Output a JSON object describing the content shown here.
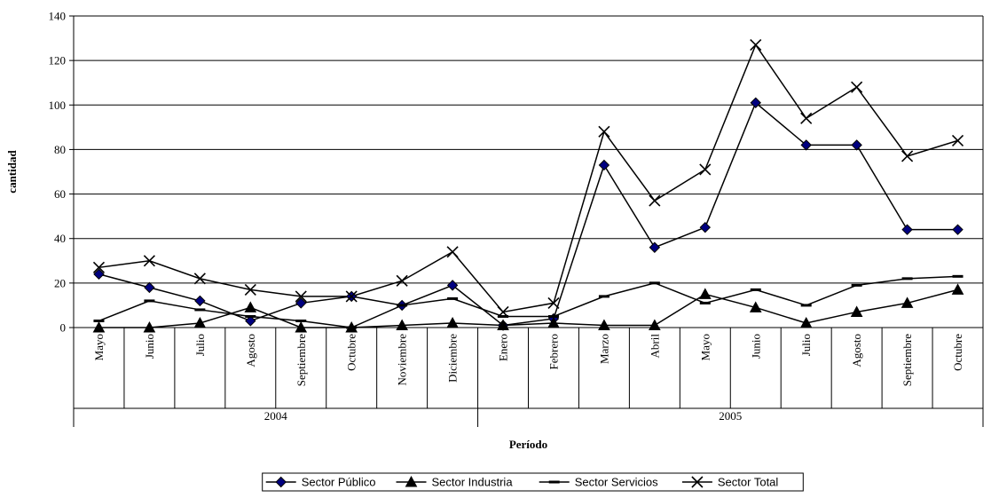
{
  "chart_data": {
    "type": "line",
    "categories": [
      "Mayo",
      "Junio",
      "Julio",
      "Agosto",
      "Septiembre",
      "Octubre",
      "Noviembre",
      "Diciembre",
      "Enero",
      "Febrero",
      "Marzo",
      "Abril",
      "Mayo",
      "Junio",
      "Julio",
      "Agosto",
      "Septiembre",
      "Octubre"
    ],
    "groups": [
      {
        "label": "2004",
        "start": 0,
        "end": 7
      },
      {
        "label": "2005",
        "start": 8,
        "end": 17
      }
    ],
    "series": [
      {
        "name": "Sector Público",
        "marker": "diamond",
        "color": "#000080",
        "values": [
          24,
          18,
          12,
          3,
          11,
          14,
          10,
          19,
          1,
          4,
          73,
          36,
          45,
          101,
          82,
          82,
          44,
          44
        ]
      },
      {
        "name": "Sector Industria",
        "marker": "triangle",
        "color": "#000000",
        "values": [
          0,
          0,
          2,
          9,
          0,
          0,
          1,
          2,
          1,
          2,
          1,
          1,
          15,
          9,
          2,
          7,
          11,
          17
        ]
      },
      {
        "name": "Sector Servicios",
        "marker": "dash",
        "color": "#000000",
        "values": [
          3,
          12,
          8,
          5,
          3,
          0,
          10,
          13,
          5,
          5,
          14,
          20,
          11,
          17,
          10,
          19,
          22,
          23
        ]
      },
      {
        "name": "Sector Total",
        "marker": "x",
        "color": "#000000",
        "values": [
          27,
          30,
          22,
          17,
          14,
          14,
          21,
          34,
          7,
          11,
          88,
          57,
          71,
          127,
          94,
          108,
          77,
          84
        ]
      }
    ],
    "title": "",
    "xlabel": "Período",
    "ylabel": "cantidad",
    "ylim": [
      0,
      140
    ],
    "yticks": [
      "0",
      "20",
      "40",
      "60",
      "80",
      "100",
      "120",
      "140"
    ],
    "grid": true,
    "legend_position": "bottom"
  }
}
